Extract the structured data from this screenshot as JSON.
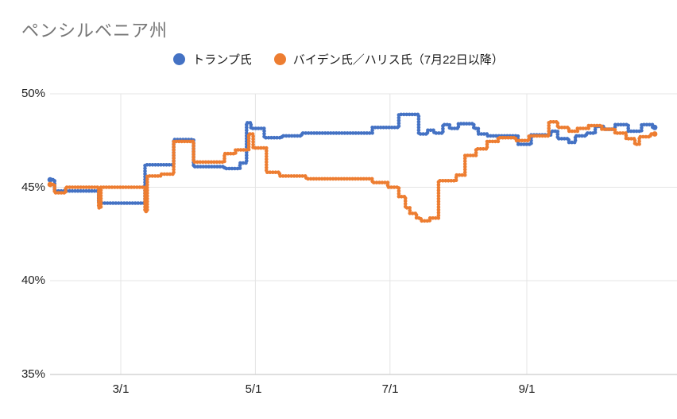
{
  "chart_data": {
    "type": "line",
    "title": "ペンシルベニア州",
    "subtitle": "",
    "legend_position": "top",
    "grid": true,
    "line_style": "beaded-step",
    "x_axis": {
      "tick_labels": [
        "3/1",
        "5/1",
        "7/1",
        "9/1"
      ],
      "tick_dates": [
        "3/1",
        "5/1",
        "7/1",
        "9/1"
      ],
      "data_range_dates": [
        "1/29",
        "10/29"
      ]
    },
    "y_axis": {
      "tick_labels": [
        "50%",
        "45%",
        "40%",
        "35%"
      ],
      "tick_values": [
        50,
        45,
        40,
        35
      ],
      "unit": "%",
      "ylim": [
        35,
        50
      ]
    },
    "series": [
      {
        "name": "トランプ氏",
        "color": "#4472c4",
        "step": true,
        "points": [
          [
            "1/29",
            45.4
          ],
          [
            "1/31",
            44.8
          ],
          [
            "2/20",
            44.15
          ],
          [
            "3/12",
            46.2
          ],
          [
            "3/25",
            47.55
          ],
          [
            "4/3",
            46.1
          ],
          [
            "4/17",
            46.0
          ],
          [
            "4/24",
            46.3
          ],
          [
            "4/27",
            48.45
          ],
          [
            "4/29",
            48.15
          ],
          [
            "5/5",
            47.65
          ],
          [
            "5/13",
            47.75
          ],
          [
            "5/22",
            47.9
          ],
          [
            "6/23",
            48.2
          ],
          [
            "7/5",
            48.9
          ],
          [
            "7/14",
            47.85
          ],
          [
            "7/18",
            48.05
          ],
          [
            "7/21",
            47.9
          ],
          [
            "7/25",
            48.35
          ],
          [
            "7/28",
            48.15
          ],
          [
            "8/1",
            48.4
          ],
          [
            "8/8",
            48.15
          ],
          [
            "8/10",
            47.85
          ],
          [
            "8/14",
            47.75
          ],
          [
            "8/28",
            47.3
          ],
          [
            "9/3",
            47.8
          ],
          [
            "9/12",
            48.0
          ],
          [
            "9/15",
            47.6
          ],
          [
            "9/20",
            47.4
          ],
          [
            "9/23",
            47.75
          ],
          [
            "9/28",
            47.9
          ],
          [
            "10/2",
            48.25
          ],
          [
            "10/6",
            48.1
          ],
          [
            "10/11",
            48.35
          ],
          [
            "10/17",
            48.0
          ],
          [
            "10/23",
            48.35
          ],
          [
            "10/28",
            48.2
          ],
          [
            "10/29",
            48.2
          ]
        ]
      },
      {
        "name": "バイデン氏／ハリス氏（7月22日以降）",
        "color": "#ed7d31",
        "step": true,
        "points": [
          [
            "1/29",
            45.15
          ],
          [
            "1/31",
            44.7
          ],
          [
            "2/5",
            45.0
          ],
          [
            "2/20",
            43.9
          ],
          [
            "2/21",
            45.0
          ],
          [
            "3/12",
            43.7
          ],
          [
            "3/13",
            45.6
          ],
          [
            "3/19",
            45.7
          ],
          [
            "3/25",
            47.45
          ],
          [
            "4/3",
            46.35
          ],
          [
            "4/17",
            46.8
          ],
          [
            "4/22",
            47.0
          ],
          [
            "4/28",
            47.85
          ],
          [
            "4/30",
            47.1
          ],
          [
            "5/6",
            45.8
          ],
          [
            "5/12",
            45.6
          ],
          [
            "5/24",
            45.45
          ],
          [
            "6/23",
            45.25
          ],
          [
            "6/30",
            45.0
          ],
          [
            "7/5",
            44.5
          ],
          [
            "7/8",
            43.9
          ],
          [
            "7/10",
            43.6
          ],
          [
            "7/13",
            43.35
          ],
          [
            "7/15",
            43.2
          ],
          [
            "7/19",
            43.35
          ],
          [
            "7/23",
            45.35
          ],
          [
            "7/31",
            45.65
          ],
          [
            "8/4",
            46.7
          ],
          [
            "8/9",
            47.05
          ],
          [
            "8/14",
            47.45
          ],
          [
            "8/19",
            47.65
          ],
          [
            "8/27",
            47.5
          ],
          [
            "9/2",
            47.75
          ],
          [
            "9/11",
            48.5
          ],
          [
            "9/15",
            48.2
          ],
          [
            "9/20",
            48.0
          ],
          [
            "9/24",
            48.15
          ],
          [
            "9/29",
            48.3
          ],
          [
            "10/5",
            48.1
          ],
          [
            "10/11",
            47.9
          ],
          [
            "10/16",
            47.6
          ],
          [
            "10/20",
            47.3
          ],
          [
            "10/22",
            47.7
          ],
          [
            "10/27",
            47.85
          ],
          [
            "10/29",
            47.85
          ]
        ]
      }
    ],
    "colors": {
      "trump_blue": "#4472c4",
      "biden_harris_orange": "#ed7d31",
      "title_gray": "#767676",
      "gridline_gray": "#e4e4e4",
      "axis_line_gray": "#cccccc"
    }
  }
}
